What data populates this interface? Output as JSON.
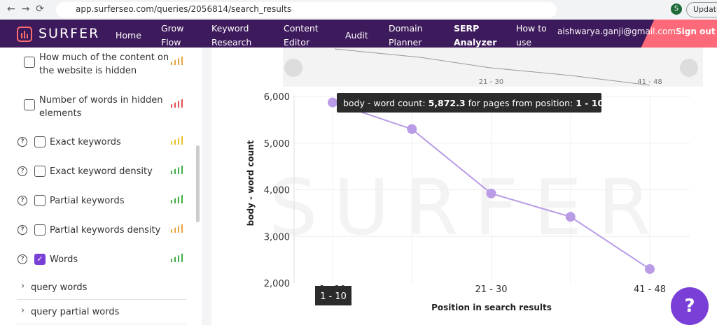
{
  "browser": {
    "url": "app.surferseo.com/queries/2056814/search_results",
    "update": "Update",
    "profile": "S"
  },
  "nav": {
    "logo": "SURFER",
    "items": [
      "Home",
      "Grow Flow",
      "Keyword Research",
      "Content Editor",
      "Audit",
      "Domain Planner",
      "SERP Analyzer",
      "How to use"
    ],
    "active": "SERP Analyzer",
    "email": "aishwarya.ganji@gmail.com",
    "sign_out": "Sign out"
  },
  "sidebar": {
    "items": [
      {
        "label": "How much of the content on the website is hidden",
        "checked": false,
        "help": false
      },
      {
        "label": "Number of words in hidden elements",
        "checked": false,
        "help": false
      },
      {
        "label": "Exact keywords",
        "checked": false,
        "help": true
      },
      {
        "label": "Exact keyword density",
        "checked": false,
        "help": true
      },
      {
        "label": "Partial keywords",
        "checked": false,
        "help": true
      },
      {
        "label": "Partial keywords density",
        "checked": false,
        "help": true
      },
      {
        "label": "Words",
        "checked": true,
        "help": true
      }
    ],
    "links": [
      "query words",
      "query partial words"
    ]
  },
  "chart_data": {
    "type": "line",
    "watermark": "SURFER",
    "categories": [
      "1 - 10",
      null,
      "21 - 30",
      null,
      "41 - 48"
    ],
    "series": [
      {
        "name": "body - word count",
        "color": "#b99be6",
        "values": [
          5872.3,
          5300,
          3920,
          3420,
          2300
        ],
        "value_labels": [
          "5,872.3",
          null,
          null,
          null,
          null
        ]
      }
    ],
    "y_label": "body - word count",
    "x_label": "Position in search results",
    "ylim": [
      2000,
      6000
    ],
    "yticks": [
      {
        "value": 2000,
        "label": "2,000"
      },
      {
        "value": 3000,
        "label": "3,000"
      },
      {
        "value": 4000,
        "label": "4,000"
      },
      {
        "value": 5000,
        "label": "5,000"
      },
      {
        "value": 6000,
        "label": "6,000"
      }
    ],
    "grid": true,
    "tooltip": {
      "prefix": "body - word count:",
      "middle": "for pages from position:"
    }
  }
}
